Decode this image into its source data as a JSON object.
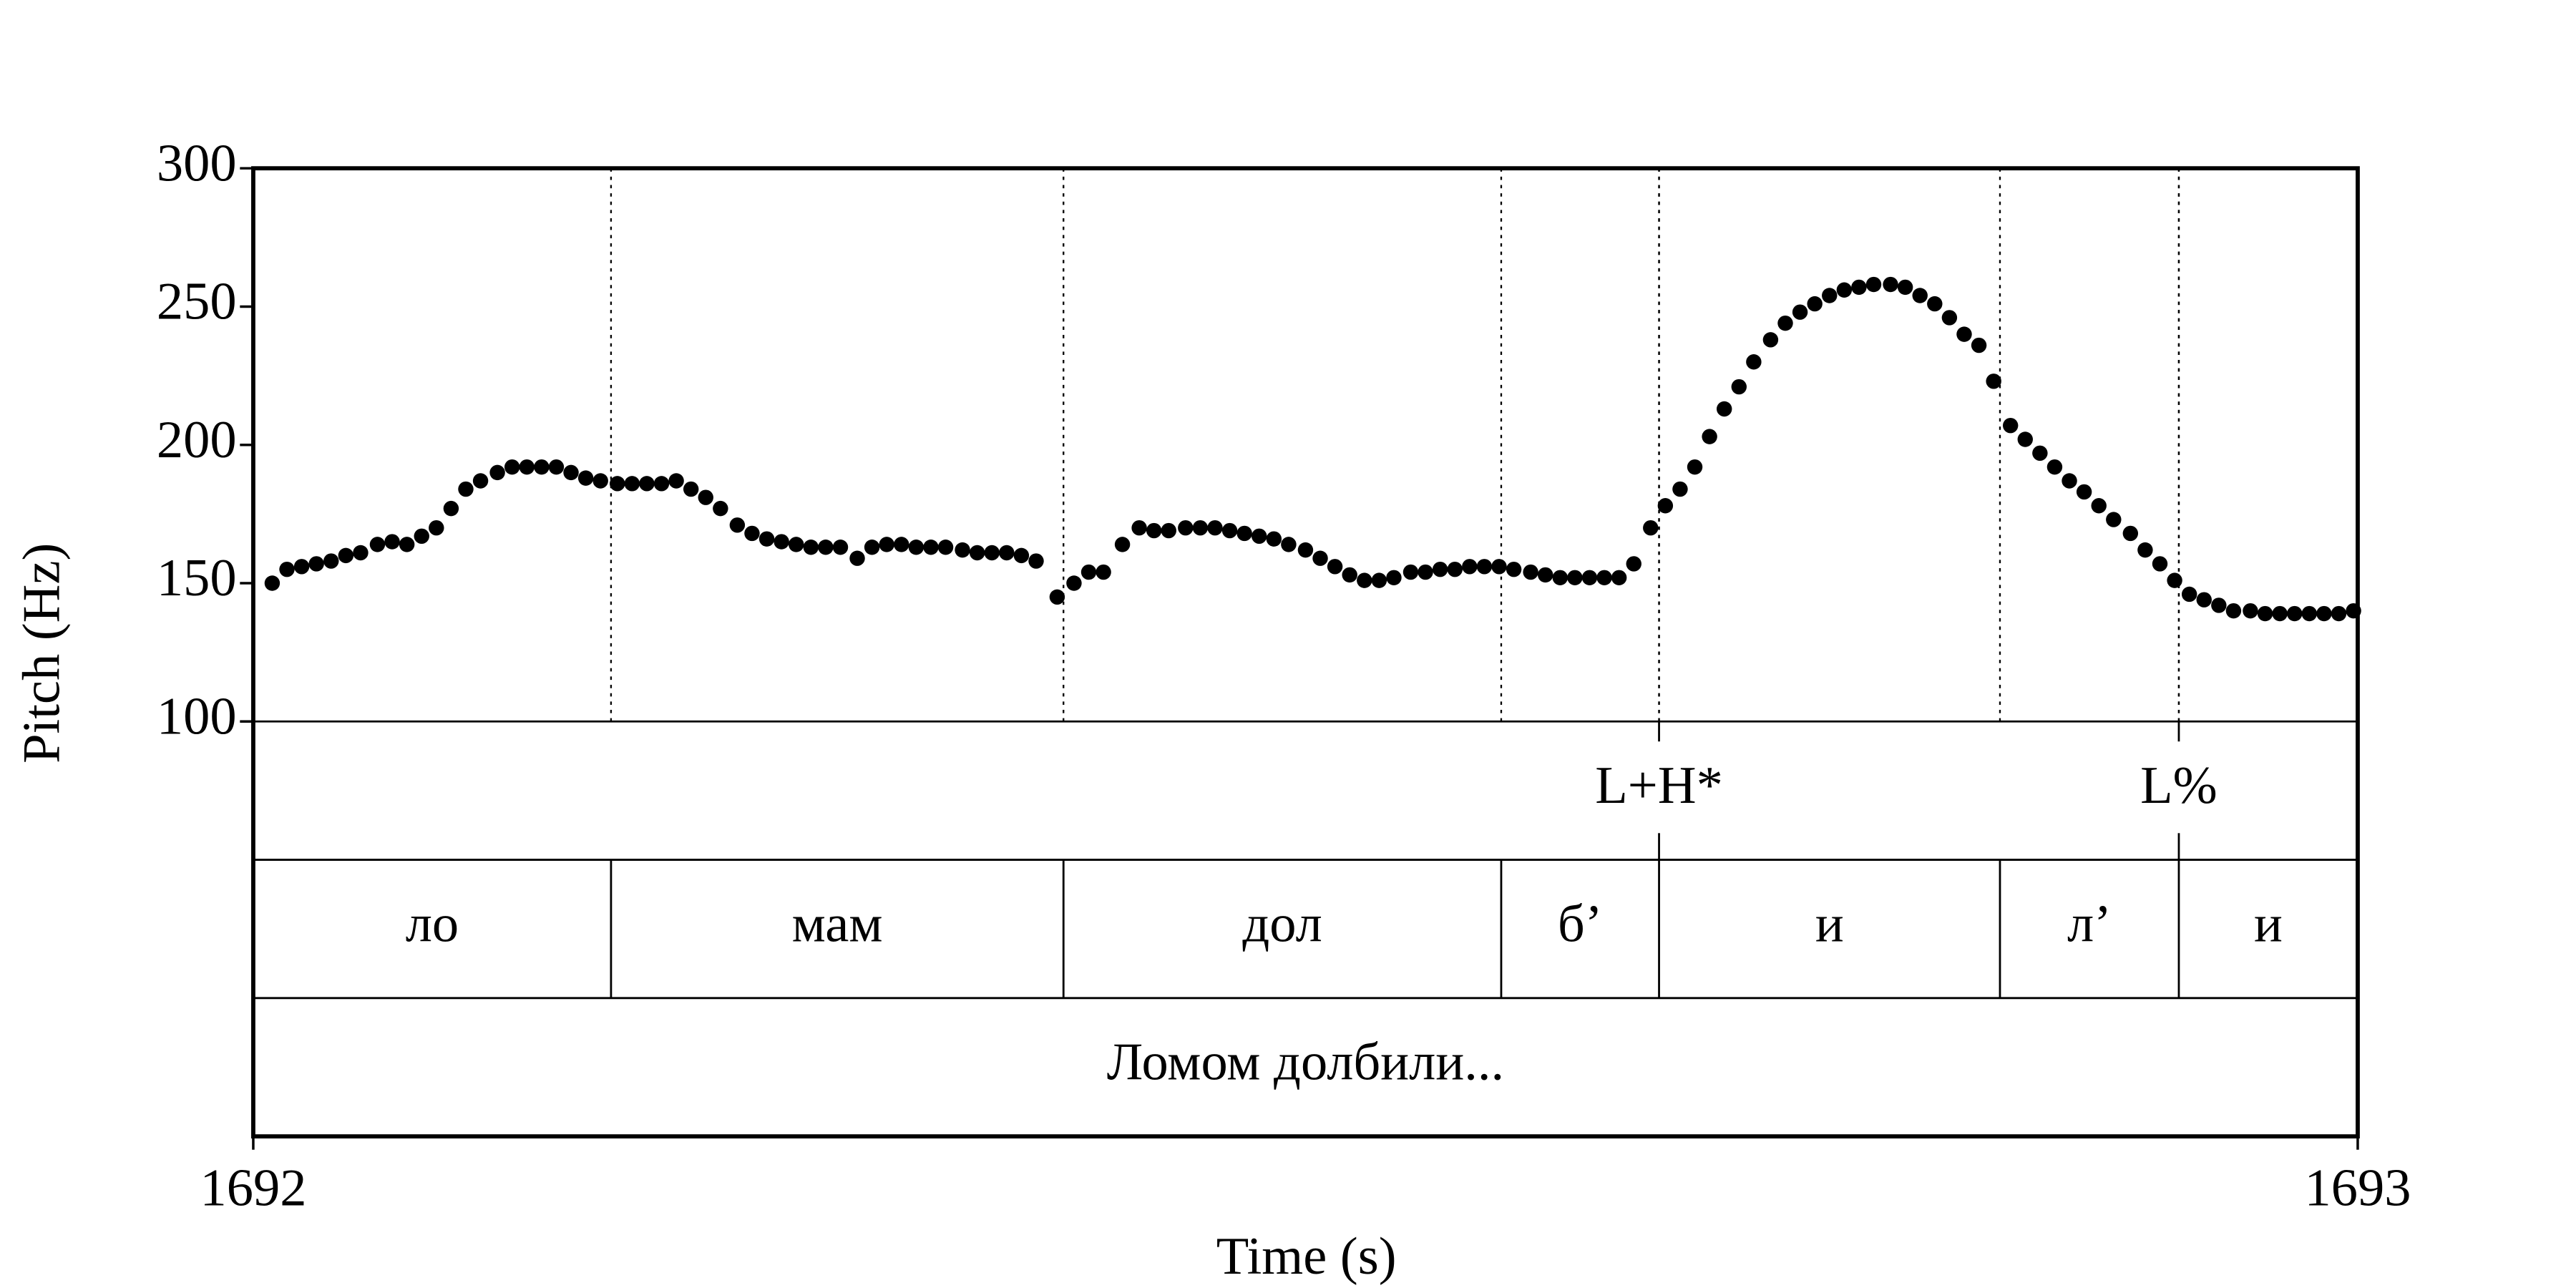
{
  "chart_data": {
    "type": "scatter",
    "x_label": "Time (s)",
    "y_label": "Pitch (Hz)",
    "xlim": [
      1692,
      1693
    ],
    "xticks": [
      1692,
      1693
    ],
    "ylim": [
      100,
      300
    ],
    "yticks": [
      100,
      150,
      200,
      250,
      300
    ],
    "color": "#000000",
    "x": [
      1692.009,
      1692.016,
      1692.023,
      1692.03,
      1692.037,
      1692.044,
      1692.051,
      1692.059,
      1692.066,
      1692.073,
      1692.08,
      1692.087,
      1692.094,
      1692.101,
      1692.108,
      1692.116,
      1692.123,
      1692.13,
      1692.137,
      1692.144,
      1692.151,
      1692.158,
      1692.165,
      1692.173,
      1692.18,
      1692.187,
      1692.194,
      1692.201,
      1692.208,
      1692.215,
      1692.222,
      1692.23,
      1692.237,
      1692.244,
      1692.251,
      1692.258,
      1692.265,
      1692.272,
      1692.279,
      1692.287,
      1692.294,
      1692.301,
      1692.308,
      1692.315,
      1692.322,
      1692.329,
      1692.337,
      1692.344,
      1692.351,
      1692.358,
      1692.365,
      1692.372,
      1692.382,
      1692.39,
      1692.397,
      1692.404,
      1692.413,
      1692.421,
      1692.428,
      1692.435,
      1692.443,
      1692.45,
      1692.457,
      1692.464,
      1692.471,
      1692.478,
      1692.485,
      1692.492,
      1692.5,
      1692.507,
      1692.514,
      1692.521,
      1692.528,
      1692.535,
      1692.542,
      1692.55,
      1692.557,
      1692.564,
      1692.571,
      1692.578,
      1692.585,
      1692.592,
      1692.599,
      1692.607,
      1692.614,
      1692.621,
      1692.628,
      1692.635,
      1692.642,
      1692.649,
      1692.656,
      1692.664,
      1692.671,
      1692.678,
      1692.685,
      1692.692,
      1692.699,
      1692.706,
      1692.713,
      1692.721,
      1692.728,
      1692.735,
      1692.742,
      1692.749,
      1692.756,
      1692.763,
      1692.77,
      1692.778,
      1692.785,
      1692.792,
      1692.799,
      1692.806,
      1692.813,
      1692.82,
      1692.827,
      1692.835,
      1692.842,
      1692.849,
      1692.856,
      1692.863,
      1692.87,
      1692.877,
      1692.884,
      1692.892,
      1692.899,
      1692.906,
      1692.913,
      1692.92,
      1692.927,
      1692.934,
      1692.941,
      1692.949,
      1692.956,
      1692.963,
      1692.97,
      1692.977,
      1692.984,
      1692.991,
      1692.998
    ],
    "values": [
      150,
      155,
      156,
      157,
      158,
      160,
      161,
      164,
      165,
      164,
      167,
      170,
      177,
      184,
      187,
      190,
      192,
      192,
      192,
      192,
      190,
      188,
      187,
      186,
      186,
      186,
      186,
      187,
      184,
      181,
      177,
      171,
      168,
      166,
      165,
      164,
      163,
      163,
      163,
      159,
      163,
      164,
      164,
      163,
      163,
      163,
      162,
      161,
      161,
      161,
      160,
      158,
      145,
      150,
      154,
      154,
      164,
      170,
      169,
      169,
      170,
      170,
      170,
      169,
      168,
      167,
      166,
      164,
      162,
      159,
      156,
      153,
      151,
      151,
      152,
      154,
      154,
      155,
      155,
      156,
      156,
      156,
      155,
      154,
      153,
      152,
      152,
      152,
      152,
      152,
      157,
      170,
      178,
      184,
      192,
      203,
      213,
      221,
      230,
      238,
      244,
      248,
      251,
      254,
      256,
      257,
      258,
      258,
      257,
      254,
      251,
      246,
      240,
      236,
      223,
      207,
      202,
      197,
      192,
      187,
      183,
      178,
      173,
      168,
      162,
      157,
      151,
      146,
      144,
      142,
      140,
      140,
      139,
      139,
      139,
      139,
      139,
      139,
      140
    ],
    "tiers": [
      {
        "times": [
          1692.668,
          1692.915
        ],
        "labels": [
          "L+H*",
          "L%"
        ]
      },
      {
        "boundaries": [
          1692.17,
          1692.385,
          1692.593,
          1692.668,
          1692.83,
          1692.915
        ],
        "labels": [
          "ло",
          "мам",
          "дол",
          "б’",
          "и",
          "л’",
          "и"
        ]
      },
      {
        "boundaries": [],
        "labels": [
          "Ломом долбили..."
        ]
      }
    ]
  }
}
